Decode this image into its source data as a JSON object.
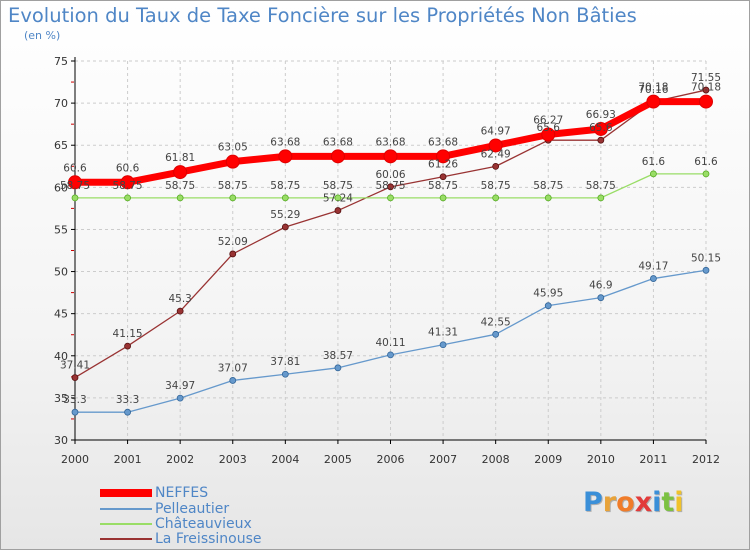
{
  "header": {
    "title": "Evolution du Taux de Taxe Foncière sur les Propriétés Non Bâties",
    "unit": "(en %)"
  },
  "colors": {
    "title": "#4f86c6",
    "grid": "#cccccc",
    "axis": "#000000"
  },
  "logo": {
    "text": "Proxiti",
    "letter_colors": [
      "#3a8fd8",
      "#e8a33a",
      "#f07c2a",
      "#e23b3b",
      "#3a8fd8",
      "#7cc142",
      "#f0c22a"
    ]
  },
  "chart_data": {
    "type": "line",
    "categories": [
      "2000",
      "2001",
      "2002",
      "2003",
      "2004",
      "2005",
      "2006",
      "2007",
      "2008",
      "2009",
      "2010",
      "2011",
      "2012"
    ],
    "ylim": [
      30,
      75
    ],
    "yticks": [
      "30",
      "35",
      "40",
      "45",
      "50",
      "55",
      "60",
      "65",
      "70",
      "75"
    ],
    "grid": true,
    "legend_position": "bottom-left",
    "series": [
      {
        "name": "NEFFES",
        "color": "#ff0000",
        "values": [
          60.6,
          60.6,
          61.81,
          63.05,
          63.68,
          63.68,
          63.68,
          63.68,
          64.97,
          66.27,
          66.93,
          70.18,
          70.18
        ],
        "labels": [
          "60.6",
          "60.6",
          "61.81",
          "63.05",
          "63.68",
          "63.68",
          "63.68",
          "63.68",
          "64.97",
          "66.27",
          "66.93",
          "70.18",
          "70.18"
        ]
      },
      {
        "name": "Pelleautier",
        "color": "#6699cc",
        "values": [
          33.3,
          33.3,
          34.97,
          37.07,
          37.81,
          38.57,
          40.11,
          41.31,
          42.55,
          45.95,
          46.9,
          49.17,
          50.15
        ],
        "labels": [
          "33.3",
          "33.3",
          "34.97",
          "37.07",
          "37.81",
          "38.57",
          "40.11",
          "41.31",
          "42.55",
          "45.95",
          "46.9",
          "49.17",
          "50.15"
        ]
      },
      {
        "name": "Châteauvieux",
        "color": "#99dd66",
        "values": [
          58.75,
          58.75,
          58.75,
          58.75,
          58.75,
          58.75,
          58.75,
          58.75,
          58.75,
          58.75,
          58.75,
          61.6,
          61.6
        ],
        "labels": [
          "58.75",
          "58.75",
          "58.75",
          "58.75",
          "58.75",
          "58.75",
          "58.75",
          "58.75",
          "58.75",
          "58.75",
          "58.75",
          "61.6",
          "61.6"
        ]
      },
      {
        "name": "La Freissinouse",
        "color": "#993333",
        "values": [
          37.41,
          41.15,
          45.3,
          52.09,
          55.29,
          57.24,
          60.06,
          61.26,
          62.49,
          65.6,
          65.6,
          70.16,
          71.55
        ],
        "labels": [
          "37.41",
          "41.15",
          "45.3",
          "52.09",
          "55.29",
          "57.24",
          "60.06",
          "61.26",
          "62.49",
          "65.6",
          "65.6",
          "70.16",
          "71.55"
        ]
      }
    ]
  }
}
